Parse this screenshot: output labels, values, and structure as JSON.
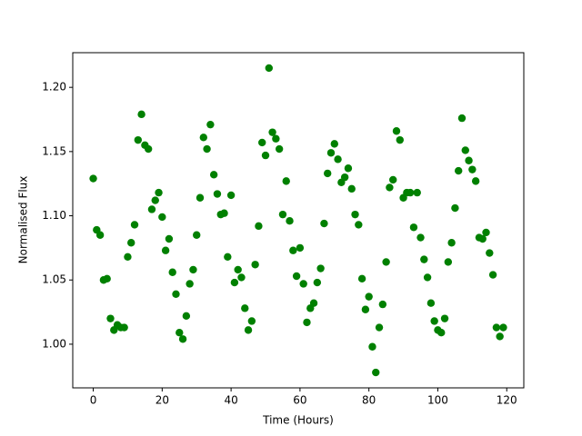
{
  "chart_data": {
    "type": "scatter",
    "xlabel": "Time (Hours)",
    "ylabel": "Normalised Flux",
    "series": [
      {
        "color": "#008000",
        "x": [
          0,
          1,
          2,
          3,
          4,
          5,
          6,
          7,
          8,
          9,
          10,
          11,
          12,
          13,
          14,
          15,
          16,
          17,
          18,
          19,
          20,
          21,
          22,
          23,
          24,
          25,
          26,
          27,
          28,
          29,
          30,
          31,
          32,
          33,
          34,
          35,
          36,
          37,
          38,
          39,
          40,
          41,
          42,
          43,
          44,
          45,
          46,
          47,
          48,
          49,
          50,
          51,
          52,
          53,
          54,
          55,
          56,
          57,
          58,
          59,
          60,
          61,
          62,
          63,
          64,
          65,
          66,
          67,
          68,
          69,
          70,
          71,
          72,
          73,
          74,
          75,
          76,
          77,
          78,
          79,
          80,
          81,
          82,
          83,
          84,
          85,
          86,
          87,
          88,
          89,
          90,
          91,
          92,
          93,
          94,
          95,
          96,
          97,
          98,
          99,
          100,
          101,
          102,
          103,
          104,
          105,
          106,
          107,
          108,
          109,
          110,
          111,
          112,
          113,
          114,
          115,
          116,
          117,
          118,
          119
        ],
        "values": [
          1.129,
          1.089,
          1.085,
          1.05,
          1.051,
          1.02,
          1.011,
          1.015,
          1.013,
          1.013,
          1.068,
          1.079,
          1.093,
          1.159,
          1.179,
          1.155,
          1.152,
          1.105,
          1.112,
          1.118,
          1.099,
          1.073,
          1.082,
          1.056,
          1.039,
          1.009,
          1.004,
          1.022,
          1.047,
          1.058,
          1.085,
          1.114,
          1.161,
          1.152,
          1.171,
          1.132,
          1.117,
          1.101,
          1.102,
          1.068,
          1.116,
          1.048,
          1.058,
          1.052,
          1.028,
          1.011,
          1.018,
          1.062,
          1.092,
          1.157,
          1.147,
          1.215,
          1.165,
          1.16,
          1.152,
          1.101,
          1.127,
          1.096,
          1.073,
          1.053,
          1.075,
          1.047,
          1.017,
          1.028,
          1.032,
          1.048,
          1.059,
          1.094,
          1.133,
          1.149,
          1.156,
          1.144,
          1.126,
          1.13,
          1.137,
          1.121,
          1.101,
          1.093,
          1.051,
          1.027,
          1.037,
          0.998,
          0.978,
          1.013,
          1.031,
          1.064,
          1.122,
          1.128,
          1.166,
          1.159,
          1.114,
          1.118,
          1.118,
          1.091,
          1.118,
          1.083,
          1.066,
          1.052,
          1.032,
          1.018,
          1.011,
          1.009,
          1.02,
          1.064,
          1.079,
          1.106,
          1.135,
          1.176,
          1.151,
          1.143,
          1.136,
          1.127,
          1.083,
          1.082,
          1.087,
          1.071,
          1.054,
          1.013,
          1.006,
          1.013
        ]
      }
    ],
    "xlim": [
      -5.95,
      124.95
    ],
    "xticks": [
      0,
      20,
      40,
      60,
      80,
      100,
      120
    ],
    "ylim": [
      0.966,
      1.227
    ],
    "yticks": [
      {
        "value": 1.0,
        "label": "1.00"
      },
      {
        "value": 1.05,
        "label": "1.05"
      },
      {
        "value": 1.1,
        "label": "1.10"
      },
      {
        "value": 1.15,
        "label": "1.15"
      },
      {
        "value": 1.2,
        "label": "1.20"
      }
    ]
  }
}
